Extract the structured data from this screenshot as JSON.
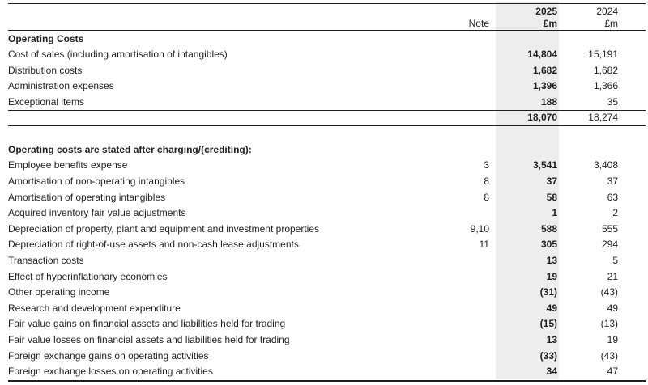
{
  "header": {
    "note_label": "Note",
    "year_2025": "2025",
    "unit_2025": "£m",
    "year_2024": "2024",
    "unit_2024": "£m"
  },
  "section1": {
    "title": "Operating Costs",
    "rows": [
      {
        "label": "Cost of sales (including amortisation of intangibles)",
        "note": "",
        "v2025": "14,804",
        "v2024": "15,191"
      },
      {
        "label": "Distribution costs",
        "note": "",
        "v2025": "1,682",
        "v2024": "1,682"
      },
      {
        "label": "Administration expenses",
        "note": "",
        "v2025": "1,396",
        "v2024": "1,366"
      },
      {
        "label": "Exceptional items",
        "note": "",
        "v2025": "188",
        "v2024": "35"
      }
    ],
    "total": {
      "v2025": "18,070",
      "v2024": "18,274"
    }
  },
  "section2": {
    "title": "Operating costs are stated after charging/(crediting):",
    "rows": [
      {
        "label": "Employee benefits expense",
        "note": "3",
        "v2025": "3,541",
        "v2024": "3,408"
      },
      {
        "label": "Amortisation of non-operating intangibles",
        "note": "8",
        "v2025": "37",
        "v2024": "37"
      },
      {
        "label": "Amortisation of operating intangibles",
        "note": "8",
        "v2025": "58",
        "v2024": "63"
      },
      {
        "label": "Acquired inventory fair value adjustments",
        "note": "",
        "v2025": "1",
        "v2024": "2"
      },
      {
        "label": "Depreciation of property, plant and equipment and investment properties",
        "note": "9,10",
        "v2025": "588",
        "v2024": "555"
      },
      {
        "label": "Depreciation of right-of-use assets and non-cash lease adjustments",
        "note": "11",
        "v2025": "305",
        "v2024": "294"
      },
      {
        "label": "Transaction costs",
        "note": "",
        "v2025": "13",
        "v2024": "5"
      },
      {
        "label": "Effect of hyperinflationary economies",
        "note": "",
        "v2025": "19",
        "v2024": "21"
      },
      {
        "label": "Other operating income",
        "note": "",
        "v2025": "(31)",
        "v2024": "(43)"
      },
      {
        "label": "Research and development expenditure",
        "note": "",
        "v2025": "49",
        "v2024": "49"
      },
      {
        "label": "Fair value gains on financial assets and liabilities held for trading",
        "note": "",
        "v2025": "(15)",
        "v2024": "(13)"
      },
      {
        "label": "Fair value losses on financial assets and liabilities held for trading",
        "note": "",
        "v2025": "13",
        "v2024": "19"
      },
      {
        "label": "Foreign exchange gains on operating activities",
        "note": "",
        "v2025": "(33)",
        "v2024": "(43)"
      },
      {
        "label": "Foreign exchange losses on operating activities",
        "note": "",
        "v2025": "34",
        "v2024": "47"
      }
    ]
  },
  "colors": {
    "highlight_band": "#ededed",
    "text": "#1f1f1f",
    "rule": "#1f1f1f"
  }
}
